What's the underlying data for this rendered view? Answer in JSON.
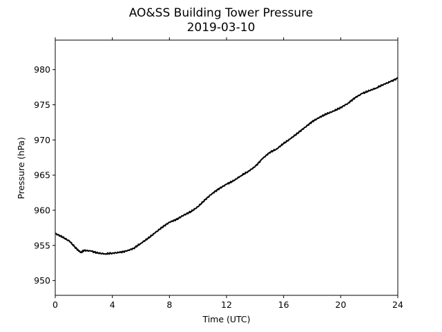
{
  "chart_data": {
    "type": "line",
    "title": "AO&SS Building Tower Pressure",
    "subtitle": "2019-03-10",
    "xlabel": "Time (UTC)",
    "ylabel": "Pressure (hPa)",
    "xlim": [
      0,
      24
    ],
    "ylim": [
      947.9,
      984.2
    ],
    "xticks": [
      0,
      4,
      8,
      12,
      16,
      20,
      24
    ],
    "yticks": [
      950,
      955,
      960,
      965,
      970,
      975,
      980
    ],
    "grid": false,
    "legend": "none",
    "line_color": "#000000",
    "series": [
      {
        "x": [
          0,
          0.5,
          1.0,
          1.5,
          1.8,
          2.0,
          2.5,
          3.0,
          3.5,
          4.0,
          4.5,
          5.0,
          5.5,
          6.0,
          6.5,
          7.0,
          7.5,
          8.0,
          8.5,
          9.0,
          9.5,
          10.0,
          10.5,
          11.0,
          11.5,
          12.0,
          12.5,
          13.0,
          13.5,
          14.0,
          14.5,
          15.0,
          15.5,
          16.0,
          16.5,
          17.0,
          17.5,
          18.0,
          18.5,
          19.0,
          19.5,
          20.0,
          20.5,
          21.0,
          21.5,
          22.0,
          22.5,
          23.0,
          23.5,
          24.0
        ],
        "y": [
          956.7,
          956.2,
          955.6,
          954.5,
          954.0,
          954.3,
          954.2,
          953.9,
          953.8,
          953.9,
          954.0,
          954.2,
          954.6,
          955.3,
          956.0,
          956.8,
          957.6,
          958.3,
          958.7,
          959.3,
          959.8,
          960.5,
          961.5,
          962.4,
          963.1,
          963.7,
          964.2,
          964.9,
          965.5,
          966.2,
          967.3,
          968.2,
          968.7,
          969.5,
          970.2,
          971.0,
          971.8,
          972.6,
          973.2,
          973.7,
          974.1,
          974.6,
          975.2,
          976.0,
          976.6,
          977.0,
          977.4,
          977.9,
          978.3,
          978.8
        ]
      }
    ]
  }
}
